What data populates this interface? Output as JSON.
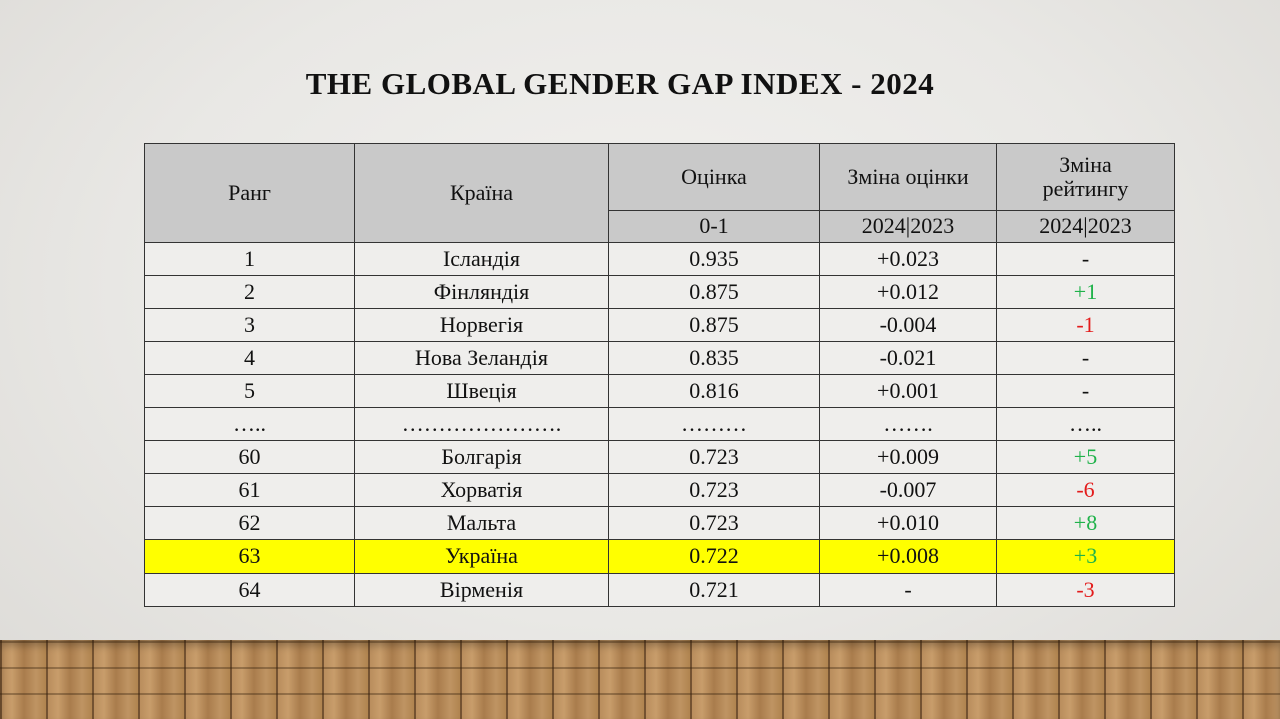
{
  "title": "THE GLOBAL GENDER GAP INDEX - 2024",
  "table": {
    "headers": {
      "rank": "Ранг",
      "country": "Країна",
      "score": "Оцінка",
      "score_change": "Зміна оцінки",
      "rank_change": "Зміна рейтингу"
    },
    "subheaders": {
      "score": "0-1",
      "score_change": "2024|2023",
      "rank_change": "2024|2023"
    },
    "rows": [
      {
        "rank": "1",
        "country": "Ісландія",
        "score": "0.935",
        "score_change": "+0.023",
        "rank_change": "-",
        "rank_change_status": "none"
      },
      {
        "rank": "2",
        "country": "Фінляндія",
        "score": "0.875",
        "score_change": "+0.012",
        "rank_change": "+1",
        "rank_change_status": "pos"
      },
      {
        "rank": "3",
        "country": "Норвегія",
        "score": "0.875",
        "score_change": "-0.004",
        "rank_change": "-1",
        "rank_change_status": "neg"
      },
      {
        "rank": "4",
        "country": "Нова Зеландія",
        "score": "0.835",
        "score_change": "-0.021",
        "rank_change": "-",
        "rank_change_status": "none"
      },
      {
        "rank": "5",
        "country": "Швеція",
        "score": "0.816",
        "score_change": "+0.001",
        "rank_change": "-",
        "rank_change_status": "none"
      },
      {
        "rank": "…..",
        "country": "………………….",
        "score": "………",
        "score_change": "…….",
        "rank_change": "…..",
        "rank_change_status": "none"
      },
      {
        "rank": "60",
        "country": "Болгарія",
        "score": "0.723",
        "score_change": "+0.009",
        "rank_change": "+5",
        "rank_change_status": "pos"
      },
      {
        "rank": "61",
        "country": "Хорватія",
        "score": "0.723",
        "score_change": "-0.007",
        "rank_change": "-6",
        "rank_change_status": "neg"
      },
      {
        "rank": "62",
        "country": "Мальта",
        "score": "0.723",
        "score_change": "+0.010",
        "rank_change": "+8",
        "rank_change_status": "pos"
      },
      {
        "rank": "63",
        "country": "Україна",
        "score": "0.722",
        "score_change": "+0.008",
        "rank_change": "+3",
        "rank_change_status": "pos",
        "highlight": true
      },
      {
        "rank": "64",
        "country": "Вірменія",
        "score": "0.721",
        "score_change": "-",
        "rank_change": "-3",
        "rank_change_status": "neg"
      }
    ]
  },
  "colors": {
    "positive": "#1fb24a",
    "negative": "#e31b1b",
    "highlight": "#ffff00",
    "header_bg": "#c9c9c9"
  }
}
